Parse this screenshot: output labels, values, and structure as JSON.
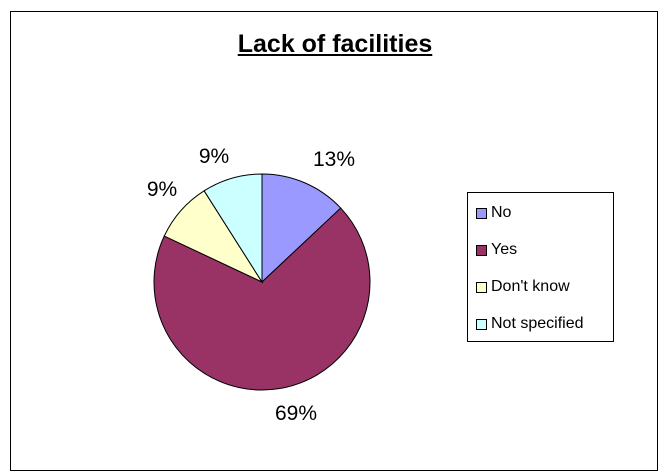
{
  "chart_data": {
    "type": "pie",
    "title": "Lack of facilities",
    "categories": [
      "No",
      "Yes",
      "Don't know",
      "Not specified"
    ],
    "values": [
      13,
      69,
      9,
      9
    ],
    "labels": [
      "13%",
      "69%",
      "9%",
      "9%"
    ],
    "colors": [
      "#9999ff",
      "#993366",
      "#ffffcc",
      "#ccffff"
    ],
    "start": "top, clockwise",
    "legend": "right"
  }
}
